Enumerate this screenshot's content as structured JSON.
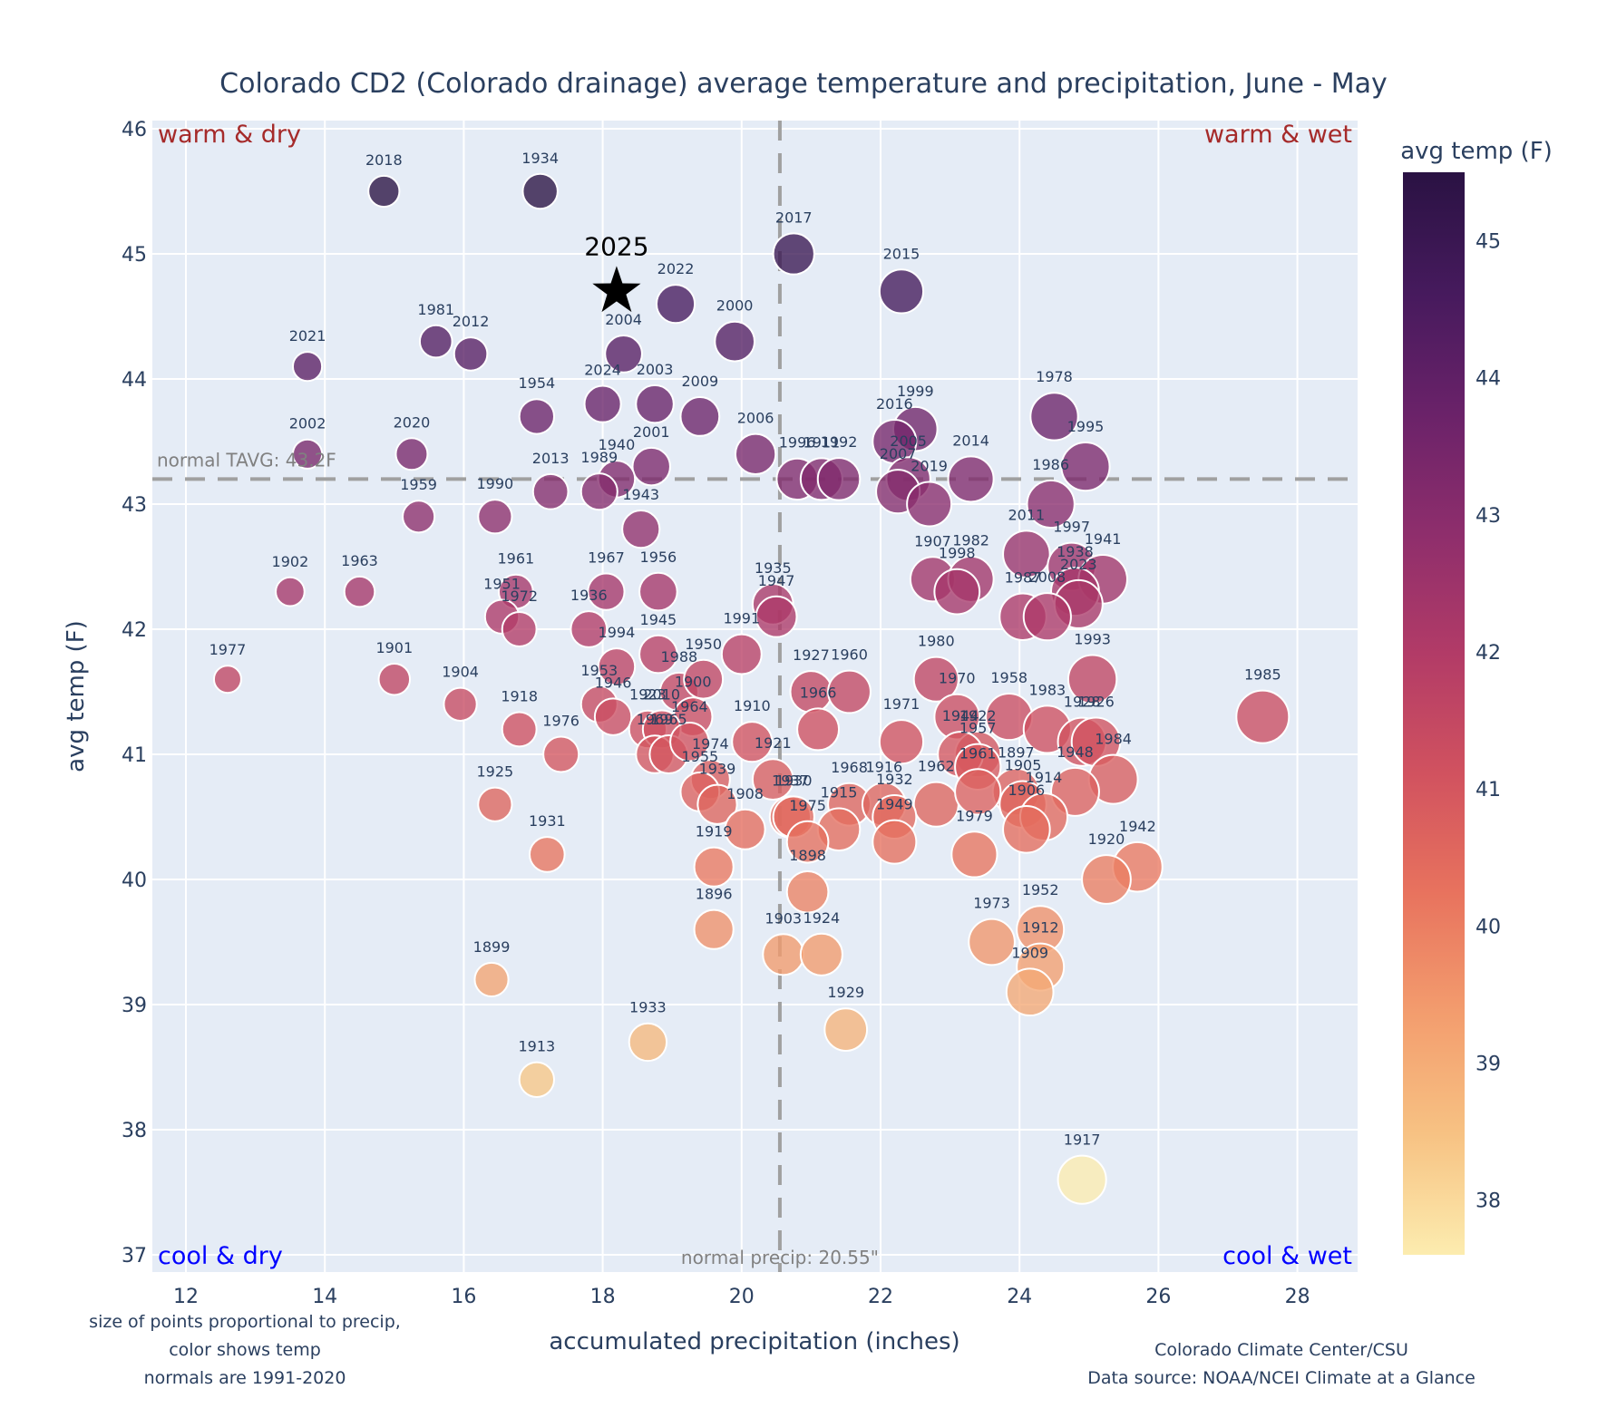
{
  "chart_data": {
    "type": "scatter",
    "title": "Colorado CD2 (Colorado drainage) average temperature and precipitation, June - May",
    "xlabel": "accumulated precipitation (inches)",
    "ylabel": "avg temp (F)",
    "xlim": [
      11.5,
      28.8
    ],
    "ylim": [
      36.9,
      46.1
    ],
    "xticks": [
      12,
      14,
      16,
      18,
      20,
      22,
      24,
      26,
      28
    ],
    "yticks": [
      37,
      38,
      39,
      40,
      41,
      42,
      43,
      44,
      45,
      46
    ],
    "grid": true,
    "size_encoding": "precip",
    "color_encoding": "temp",
    "colorbar": {
      "title": "avg temp (F)",
      "ticks": [
        38,
        39,
        40,
        41,
        42,
        43,
        44,
        45
      ],
      "range": [
        37.6,
        45.5
      ],
      "colorscale": [
        "#fcecaf",
        "#f7c283",
        "#f39d6e",
        "#e8735e",
        "#d1525f",
        "#b23b67",
        "#8e2e6c",
        "#6a2269",
        "#461a5d",
        "#2a1243"
      ]
    },
    "reference_lines": {
      "normal_temp": {
        "value": 43.2,
        "label": "normal TAVG: 43.2F"
      },
      "normal_precip": {
        "value": 20.55,
        "label": "normal precip: 20.55\""
      }
    },
    "quadrants": {
      "top_left": "warm & dry",
      "top_right": "warm & wet",
      "bottom_left": "cool & dry",
      "bottom_right": "cool & wet"
    },
    "highlight": {
      "label": "2025",
      "x": 18.2,
      "y": 44.7,
      "marker": "star"
    },
    "points": [
      {
        "year": "2018",
        "x": 14.85,
        "y": 45.5
      },
      {
        "year": "1934",
        "x": 17.1,
        "y": 45.5
      },
      {
        "year": "2017",
        "x": 20.75,
        "y": 45.0
      },
      {
        "year": "2015",
        "x": 22.3,
        "y": 44.7
      },
      {
        "year": "2022",
        "x": 19.05,
        "y": 44.6
      },
      {
        "year": "1981",
        "x": 15.6,
        "y": 44.3
      },
      {
        "year": "2000",
        "x": 19.9,
        "y": 44.3
      },
      {
        "year": "2012",
        "x": 16.1,
        "y": 44.2
      },
      {
        "year": "2004",
        "x": 18.3,
        "y": 44.2
      },
      {
        "year": "2021",
        "x": 13.75,
        "y": 44.1
      },
      {
        "year": "2024",
        "x": 18.0,
        "y": 43.8
      },
      {
        "year": "2003",
        "x": 18.75,
        "y": 43.8
      },
      {
        "year": "1954",
        "x": 17.05,
        "y": 43.7
      },
      {
        "year": "2009",
        "x": 19.4,
        "y": 43.7
      },
      {
        "year": "1978",
        "x": 24.5,
        "y": 43.7
      },
      {
        "year": "1999",
        "x": 22.5,
        "y": 43.6
      },
      {
        "year": "2016",
        "x": 22.2,
        "y": 43.5
      },
      {
        "year": "2002",
        "x": 13.75,
        "y": 43.4
      },
      {
        "year": "2020",
        "x": 15.25,
        "y": 43.4
      },
      {
        "year": "2006",
        "x": 20.2,
        "y": 43.4
      },
      {
        "year": "2001",
        "x": 18.7,
        "y": 43.3
      },
      {
        "year": "1995",
        "x": 24.95,
        "y": 43.3
      },
      {
        "year": "1940",
        "x": 18.2,
        "y": 43.2
      },
      {
        "year": "1996",
        "x": 20.8,
        "y": 43.2
      },
      {
        "year": "1911",
        "x": 21.15,
        "y": 43.2
      },
      {
        "year": "1992",
        "x": 21.4,
        "y": 43.2
      },
      {
        "year": "2005",
        "x": 22.4,
        "y": 43.2
      },
      {
        "year": "2014",
        "x": 23.3,
        "y": 43.2
      },
      {
        "year": "2013",
        "x": 17.25,
        "y": 43.1
      },
      {
        "year": "1989",
        "x": 17.95,
        "y": 43.1
      },
      {
        "year": "2007",
        "x": 22.25,
        "y": 43.1
      },
      {
        "year": "2019",
        "x": 22.7,
        "y": 43.0
      },
      {
        "year": "1986",
        "x": 24.45,
        "y": 43.0
      },
      {
        "year": "1959",
        "x": 15.35,
        "y": 42.9
      },
      {
        "year": "1990",
        "x": 16.45,
        "y": 42.9
      },
      {
        "year": "1943",
        "x": 18.55,
        "y": 42.8
      },
      {
        "year": "2011",
        "x": 24.1,
        "y": 42.6
      },
      {
        "year": "1997",
        "x": 24.75,
        "y": 42.5
      },
      {
        "year": "1907",
        "x": 22.75,
        "y": 42.4
      },
      {
        "year": "1982",
        "x": 23.3,
        "y": 42.4
      },
      {
        "year": "1941",
        "x": 25.2,
        "y": 42.4
      },
      {
        "year": "1998",
        "x": 23.1,
        "y": 42.3
      },
      {
        "year": "1938",
        "x": 24.8,
        "y": 42.3
      },
      {
        "year": "1902",
        "x": 13.5,
        "y": 42.3
      },
      {
        "year": "1963",
        "x": 14.5,
        "y": 42.3
      },
      {
        "year": "1961",
        "x": 16.75,
        "y": 42.3
      },
      {
        "year": "1967",
        "x": 18.05,
        "y": 42.3
      },
      {
        "year": "1956",
        "x": 18.8,
        "y": 42.3
      },
      {
        "year": "1935",
        "x": 20.45,
        "y": 42.2
      },
      {
        "year": "2023",
        "x": 24.85,
        "y": 42.2
      },
      {
        "year": "1951",
        "x": 16.55,
        "y": 42.1
      },
      {
        "year": "1947",
        "x": 20.5,
        "y": 42.1
      },
      {
        "year": "1987",
        "x": 24.05,
        "y": 42.1
      },
      {
        "year": "2008",
        "x": 24.4,
        "y": 42.1
      },
      {
        "year": "1972",
        "x": 16.8,
        "y": 42.0
      },
      {
        "year": "1936",
        "x": 17.8,
        "y": 42.0
      },
      {
        "year": "1994",
        "x": 18.2,
        "y": 41.7
      },
      {
        "year": "1945",
        "x": 18.8,
        "y": 41.8
      },
      {
        "year": "1991",
        "x": 20.0,
        "y": 41.8
      },
      {
        "year": "1988",
        "x": 19.1,
        "y": 41.5
      },
      {
        "year": "1950",
        "x": 19.45,
        "y": 41.6
      },
      {
        "year": "1977",
        "x": 12.6,
        "y": 41.6
      },
      {
        "year": "1901",
        "x": 15.0,
        "y": 41.6
      },
      {
        "year": "1980",
        "x": 22.8,
        "y": 41.6
      },
      {
        "year": "1993",
        "x": 25.05,
        "y": 41.6
      },
      {
        "year": "1927",
        "x": 21.0,
        "y": 41.5
      },
      {
        "year": "1960",
        "x": 21.55,
        "y": 41.5
      },
      {
        "year": "1904",
        "x": 15.95,
        "y": 41.4
      },
      {
        "year": "1953",
        "x": 17.95,
        "y": 41.4
      },
      {
        "year": "1946",
        "x": 18.15,
        "y": 41.3
      },
      {
        "year": "1900",
        "x": 19.3,
        "y": 41.3
      },
      {
        "year": "1970",
        "x": 23.1,
        "y": 41.3
      },
      {
        "year": "1958",
        "x": 23.85,
        "y": 41.3
      },
      {
        "year": "1985",
        "x": 27.5,
        "y": 41.3
      },
      {
        "year": "1918",
        "x": 16.8,
        "y": 41.2
      },
      {
        "year": "1923",
        "x": 18.65,
        "y": 41.2
      },
      {
        "year": "2010",
        "x": 18.85,
        "y": 41.2
      },
      {
        "year": "1966",
        "x": 21.1,
        "y": 41.2
      },
      {
        "year": "1983",
        "x": 24.4,
        "y": 41.2
      },
      {
        "year": "1910",
        "x": 20.15,
        "y": 41.1
      },
      {
        "year": "1971",
        "x": 22.3,
        "y": 41.1
      },
      {
        "year": "1928",
        "x": 24.9,
        "y": 41.1
      },
      {
        "year": "1926",
        "x": 25.1,
        "y": 41.1
      },
      {
        "year": "1976",
        "x": 17.4,
        "y": 41.0
      },
      {
        "year": "1969",
        "x": 18.75,
        "y": 41.0
      },
      {
        "year": "1965",
        "x": 18.95,
        "y": 41.0
      },
      {
        "year": "1964",
        "x": 19.25,
        "y": 41.1
      },
      {
        "year": "1922",
        "x": 23.4,
        "y": 41.0
      },
      {
        "year": "1944",
        "x": 23.15,
        "y": 41.0
      },
      {
        "year": "1957",
        "x": 23.4,
        "y": 40.9
      },
      {
        "year": "1984",
        "x": 25.35,
        "y": 40.8
      },
      {
        "year": "1921",
        "x": 20.45,
        "y": 40.8
      },
      {
        "year": "1974",
        "x": 19.55,
        "y": 40.8
      },
      {
        "year": "1948",
        "x": 24.8,
        "y": 40.7
      },
      {
        "year": "1955",
        "x": 19.4,
        "y": 40.7
      },
      {
        "year": "1962",
        "x": 22.8,
        "y": 40.6
      },
      {
        "year": "1925",
        "x": 16.45,
        "y": 40.6
      },
      {
        "year": "1939",
        "x": 19.65,
        "y": 40.6
      },
      {
        "year": "1937",
        "x": 20.7,
        "y": 40.5
      },
      {
        "year": "1968",
        "x": 21.55,
        "y": 40.6
      },
      {
        "year": "1916",
        "x": 22.05,
        "y": 40.6
      },
      {
        "year": "1897",
        "x": 23.95,
        "y": 40.7
      },
      {
        "year": "1905",
        "x": 24.05,
        "y": 40.6
      },
      {
        "year": "1930",
        "x": 20.75,
        "y": 40.5
      },
      {
        "year": "1914",
        "x": 24.35,
        "y": 40.5
      },
      {
        "year": "1961b",
        "x": 23.4,
        "y": 40.7
      },
      {
        "year": "1932",
        "x": 22.2,
        "y": 40.5
      },
      {
        "year": "1949",
        "x": 22.2,
        "y": 40.3
      },
      {
        "year": "1915",
        "x": 21.4,
        "y": 40.4
      },
      {
        "year": "1908",
        "x": 20.05,
        "y": 40.4
      },
      {
        "year": "1975",
        "x": 20.95,
        "y": 40.3
      },
      {
        "year": "1906",
        "x": 24.1,
        "y": 40.4
      },
      {
        "year": "1931",
        "x": 17.2,
        "y": 40.2
      },
      {
        "year": "1979",
        "x": 23.35,
        "y": 40.2
      },
      {
        "year": "1919",
        "x": 19.6,
        "y": 40.1
      },
      {
        "year": "1942",
        "x": 25.7,
        "y": 40.1
      },
      {
        "year": "1920",
        "x": 25.25,
        "y": 40.0
      },
      {
        "year": "1898",
        "x": 20.95,
        "y": 39.9
      },
      {
        "year": "1896",
        "x": 19.6,
        "y": 39.6
      },
      {
        "year": "1952",
        "x": 24.3,
        "y": 39.6
      },
      {
        "year": "1973",
        "x": 23.6,
        "y": 39.5
      },
      {
        "year": "1903",
        "x": 20.6,
        "y": 39.4
      },
      {
        "year": "1924",
        "x": 21.15,
        "y": 39.4
      },
      {
        "year": "1912",
        "x": 24.3,
        "y": 39.3
      },
      {
        "year": "1909",
        "x": 24.15,
        "y": 39.1
      },
      {
        "year": "1899",
        "x": 16.4,
        "y": 39.2
      },
      {
        "year": "1929",
        "x": 21.5,
        "y": 38.8
      },
      {
        "year": "1933",
        "x": 18.65,
        "y": 38.7
      },
      {
        "year": "1913",
        "x": 17.05,
        "y": 38.4
      },
      {
        "year": "1917",
        "x": 24.9,
        "y": 37.6
      }
    ]
  },
  "notes": {
    "left": [
      "size of points proportional to precip,",
      "color shows temp",
      "normals are 1991-2020"
    ],
    "right": [
      "Colorado Climate Center/CSU",
      "Data source: NOAA/NCEI Climate at a Glance"
    ]
  }
}
